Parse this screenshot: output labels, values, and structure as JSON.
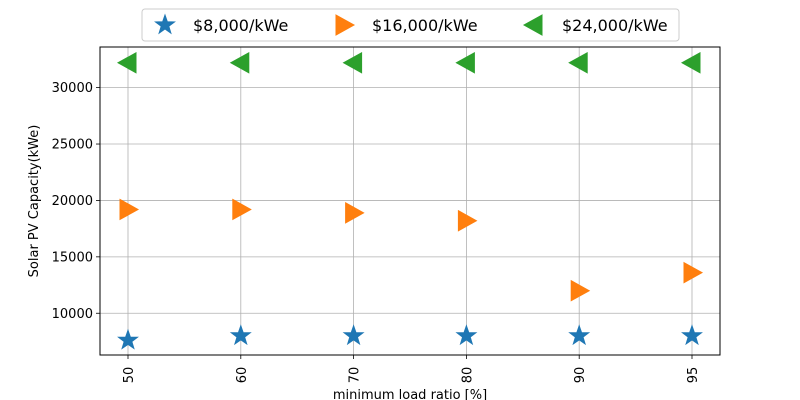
{
  "chart_data": {
    "type": "scatter",
    "title": "",
    "xlabel": "minimum load ratio [%]",
    "ylabel": "Solar PV Capacity(kWe)",
    "categories": [
      "50",
      "60",
      "70",
      "80",
      "90",
      "95"
    ],
    "yticks": [
      10000,
      15000,
      20000,
      25000,
      30000
    ],
    "ylim": [
      6300,
      33600
    ],
    "grid": true,
    "legend_placement": "top-center",
    "series": [
      {
        "name": "$8,000/kWe",
        "marker": "star",
        "color": "#1f77b4",
        "values": [
          7600,
          8000,
          8000,
          8000,
          8000,
          8000
        ]
      },
      {
        "name": "$16,000/kWe",
        "marker": "triangle-right",
        "color": "#ff7f0e",
        "values": [
          19200,
          19200,
          18900,
          18200,
          12000,
          13600
        ]
      },
      {
        "name": "$24,000/kWe",
        "marker": "triangle-left",
        "color": "#2ca02c",
        "values": [
          32200,
          32200,
          32200,
          32200,
          32200,
          32200
        ]
      }
    ]
  }
}
